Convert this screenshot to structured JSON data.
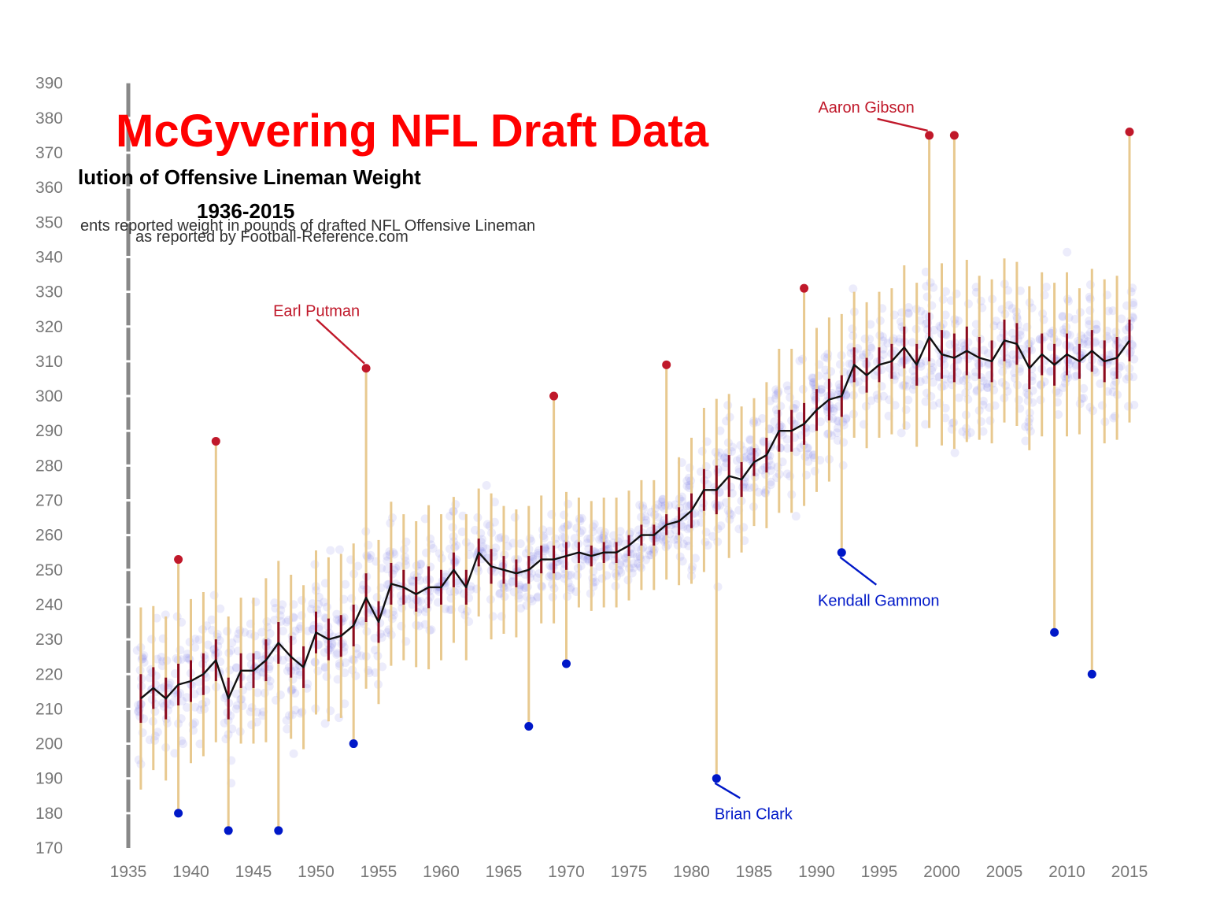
{
  "chart_data": {
    "type": "line",
    "title": "McGyvering NFL Draft Data",
    "subtitle_line1": "lution of Offensive Lineman Weight",
    "subtitle_line2": "1936-2015",
    "description_line1": "ents reported weight in pounds of drafted NFL Offensive Lineman",
    "description_line2": "as reported by Football-Reference.com",
    "xlim": [
      1935,
      2016
    ],
    "ylim": [
      170,
      390
    ],
    "x_ticks": [
      1935,
      1940,
      1945,
      1950,
      1955,
      1960,
      1965,
      1970,
      1975,
      1980,
      1985,
      1990,
      1995,
      2000,
      2005,
      2010,
      2015
    ],
    "y_ticks": [
      170,
      180,
      190,
      200,
      210,
      220,
      230,
      240,
      250,
      260,
      270,
      280,
      290,
      300,
      310,
      320,
      330,
      340,
      350,
      360,
      370,
      380,
      390
    ],
    "colors": {
      "mean_line": "#111111",
      "std_bar": "#8b0a1e",
      "range_line": "#e8c98f",
      "heavy_outlier": "#c0182a",
      "light_outlier": "#0018c8",
      "scatter": "#6666dd",
      "axis": "#888888"
    },
    "series": [
      {
        "name": "mean",
        "x": [
          1936,
          1937,
          1938,
          1939,
          1940,
          1941,
          1942,
          1943,
          1944,
          1945,
          1946,
          1947,
          1948,
          1949,
          1950,
          1951,
          1952,
          1953,
          1954,
          1955,
          1956,
          1957,
          1958,
          1959,
          1960,
          1961,
          1962,
          1963,
          1964,
          1965,
          1966,
          1967,
          1968,
          1969,
          1970,
          1971,
          1972,
          1973,
          1974,
          1975,
          1976,
          1977,
          1978,
          1979,
          1980,
          1981,
          1982,
          1983,
          1984,
          1985,
          1986,
          1987,
          1988,
          1989,
          1990,
          1991,
          1992,
          1993,
          1994,
          1995,
          1996,
          1997,
          1998,
          1999,
          2000,
          2001,
          2002,
          2003,
          2004,
          2005,
          2006,
          2007,
          2008,
          2009,
          2010,
          2011,
          2012,
          2013,
          2014,
          2015
        ],
        "values": [
          213,
          216,
          213,
          217,
          218,
          220,
          224,
          213,
          221,
          221,
          224,
          229,
          225,
          222,
          232,
          230,
          231,
          234,
          242,
          235,
          246,
          245,
          243,
          245,
          245,
          250,
          245,
          255,
          251,
          250,
          249,
          250,
          253,
          253,
          254,
          255,
          254,
          255,
          255,
          257,
          260,
          260,
          263,
          264,
          267,
          273,
          273,
          277,
          276,
          281,
          283,
          290,
          290,
          292,
          296,
          299,
          300,
          309,
          306,
          309,
          310,
          314,
          309,
          317,
          312,
          311,
          313,
          311,
          310,
          316,
          315,
          308,
          312,
          309,
          312,
          310,
          313,
          310,
          311,
          316
        ],
        "std": [
          7,
          6,
          6,
          6,
          6,
          6,
          6,
          6,
          5,
          5,
          6,
          6,
          6,
          6,
          6,
          6,
          6,
          6,
          7,
          6,
          6,
          5,
          5,
          6,
          5,
          5,
          5,
          4,
          5,
          4,
          4,
          4,
          4,
          4,
          4,
          3,
          3,
          3,
          3,
          3,
          3,
          3,
          3,
          4,
          5,
          6,
          7,
          6,
          5,
          4,
          5,
          6,
          6,
          6,
          6,
          6,
          6,
          5,
          5,
          5,
          5,
          6,
          6,
          7,
          7,
          7,
          7,
          6,
          6,
          6,
          6,
          6,
          6,
          6,
          6,
          5,
          6,
          6,
          6,
          6
        ]
      }
    ],
    "annotations": [
      {
        "label": "Earl Putman",
        "x": 1954,
        "y": 308,
        "color": "#c0182a"
      },
      {
        "label": "Aaron Gibson",
        "x": 1999,
        "y": 375,
        "color": "#c0182a"
      },
      {
        "label": "Kendall Gammon",
        "x": 1992,
        "y": 255,
        "color": "#0018c8"
      },
      {
        "label": "Brian Clark",
        "x": 1982,
        "y": 190,
        "color": "#0018c8"
      }
    ],
    "heavy_outliers": [
      [
        1939,
        253
      ],
      [
        1942,
        287
      ],
      [
        1954,
        308
      ],
      [
        1969,
        300
      ],
      [
        1978,
        309
      ],
      [
        1989,
        331
      ],
      [
        1999,
        375
      ],
      [
        2001,
        375
      ],
      [
        2015,
        376
      ]
    ],
    "light_outliers": [
      [
        1939,
        180
      ],
      [
        1943,
        175
      ],
      [
        1947,
        175
      ],
      [
        1953,
        200
      ],
      [
        1967,
        205
      ],
      [
        1970,
        223
      ],
      [
        1982,
        190
      ],
      [
        1992,
        255
      ],
      [
        2009,
        232
      ],
      [
        2012,
        220
      ]
    ],
    "grid": false,
    "legend": "none"
  }
}
